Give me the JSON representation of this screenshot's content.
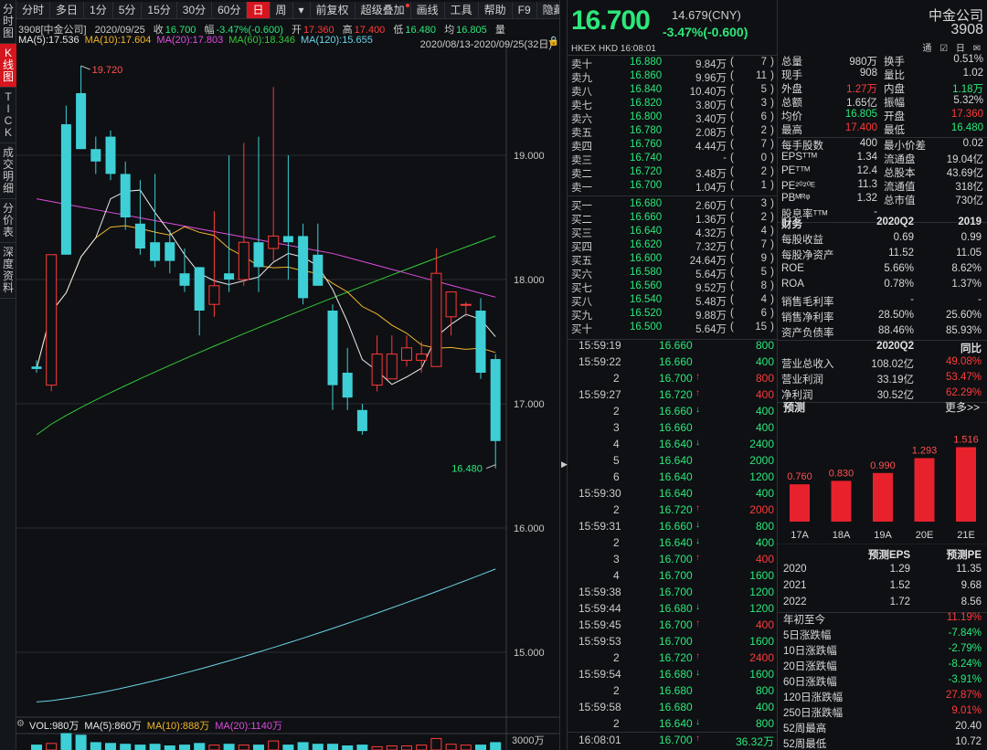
{
  "sidebar": {
    "items": [
      {
        "label": "分\n时\n图",
        "active": false
      },
      {
        "label": "K\n线\n图",
        "active": true
      },
      {
        "label": "T\nI\nC\nK",
        "active": false
      },
      {
        "label": "成\n交\n明\n细",
        "active": false
      },
      {
        "label": "分\n价\n表",
        "active": false
      },
      {
        "label": "深\n度\n资\n料",
        "active": false
      }
    ]
  },
  "toolbar": {
    "buttons": [
      "分时",
      "多日",
      "1分",
      "5分",
      "15分",
      "30分",
      "60分",
      "日",
      "周",
      "▾",
      "前复权",
      "超级叠加",
      "画线",
      "工具",
      "帮助",
      "F9",
      "隐藏"
    ],
    "active_index": 7,
    "dot_index": 11
  },
  "chart": {
    "info": {
      "code_name": "3908[中金公司]",
      "date": "2020/09/25",
      "close_label": "收",
      "close": "16.700",
      "range_label": "幅",
      "range": "-3.47%(-0.600)",
      "open_label": "开",
      "open": "17.360",
      "high_label": "高",
      "high": "17.400",
      "low_label": "低",
      "low": "16.480",
      "avg_label": "均",
      "avg": "16.805",
      "vol_label": "量"
    },
    "ma_legend": [
      {
        "text": "MA(5):17.536",
        "color": "#e8e8e8"
      },
      {
        "text": "MA(10):17.604",
        "color": "#f2b72b"
      },
      {
        "text": "MA(20):17.803",
        "color": "#e04ce0"
      },
      {
        "text": "MA(60):18.346",
        "color": "#35c93b"
      },
      {
        "text": "MA(120):15.655",
        "color": "#6bd3e8"
      }
    ],
    "date_range": "2020/08/13-2020/09/25(32日)",
    "price_labels": [
      "19.000",
      "18.000",
      "17.000",
      "16.000",
      "15.000"
    ],
    "high_mark": "19.720",
    "low_mark": "16.480",
    "vol_legend": [
      {
        "text": "VOL:980万",
        "color": "#e8e8e8"
      },
      {
        "text": "MA(5):860万",
        "color": "#e8e8e8"
      },
      {
        "text": "MA(10):888万",
        "color": "#f2b72b"
      },
      {
        "text": "MA(20):1140万",
        "color": "#e04ce0"
      }
    ],
    "vol_label": "3000万"
  },
  "quote": {
    "price": "16.700",
    "prev_close": "14.679(CNY)",
    "change": "-3.47%(-0.600)",
    "market": "HKEX  HKD  16:08:01",
    "asks": [
      {
        "label": "卖十",
        "price": "16.880",
        "vol": "9.84万",
        "cnt": "7"
      },
      {
        "label": "卖九",
        "price": "16.860",
        "vol": "9.96万",
        "cnt": "11"
      },
      {
        "label": "卖八",
        "price": "16.840",
        "vol": "10.40万",
        "cnt": "5"
      },
      {
        "label": "卖七",
        "price": "16.820",
        "vol": "3.80万",
        "cnt": "3"
      },
      {
        "label": "卖六",
        "price": "16.800",
        "vol": "3.40万",
        "cnt": "6"
      },
      {
        "label": "卖五",
        "price": "16.780",
        "vol": "2.08万",
        "cnt": "2"
      },
      {
        "label": "卖四",
        "price": "16.760",
        "vol": "4.44万",
        "cnt": "7"
      },
      {
        "label": "卖三",
        "price": "16.740",
        "vol": "-",
        "cnt": "0"
      },
      {
        "label": "卖二",
        "price": "16.720",
        "vol": "3.48万",
        "cnt": "2"
      },
      {
        "label": "卖一",
        "price": "16.700",
        "vol": "1.04万",
        "cnt": "1"
      }
    ],
    "bids": [
      {
        "label": "买一",
        "price": "16.680",
        "vol": "2.60万",
        "cnt": "3"
      },
      {
        "label": "买二",
        "price": "16.660",
        "vol": "1.36万",
        "cnt": "2"
      },
      {
        "label": "买三",
        "price": "16.640",
        "vol": "4.32万",
        "cnt": "4"
      },
      {
        "label": "买四",
        "price": "16.620",
        "vol": "7.32万",
        "cnt": "7"
      },
      {
        "label": "买五",
        "price": "16.600",
        "vol": "24.64万",
        "cnt": "9"
      },
      {
        "label": "买六",
        "price": "16.580",
        "vol": "5.64万",
        "cnt": "5"
      },
      {
        "label": "买七",
        "price": "16.560",
        "vol": "9.52万",
        "cnt": "8"
      },
      {
        "label": "买八",
        "price": "16.540",
        "vol": "5.48万",
        "cnt": "4"
      },
      {
        "label": "买九",
        "price": "16.520",
        "vol": "9.88万",
        "cnt": "6"
      },
      {
        "label": "买十",
        "price": "16.500",
        "vol": "5.64万",
        "cnt": "15"
      }
    ],
    "ticks": [
      {
        "time": "15:59:19",
        "price": "16.660",
        "dir": "",
        "vol": "800",
        "vcolor": "green"
      },
      {
        "time": "15:59:22",
        "price": "16.660",
        "dir": "",
        "vol": "400",
        "vcolor": "green"
      },
      {
        "time": "2",
        "price": "16.700",
        "dir": "up",
        "vol": "800",
        "vcolor": "red"
      },
      {
        "time": "15:59:27",
        "price": "16.720",
        "dir": "up",
        "vol": "400",
        "vcolor": "red"
      },
      {
        "time": "2",
        "price": "16.660",
        "dir": "down",
        "vol": "400",
        "vcolor": "green"
      },
      {
        "time": "3",
        "price": "16.660",
        "dir": "",
        "vol": "400",
        "vcolor": "green"
      },
      {
        "time": "4",
        "price": "16.640",
        "dir": "down",
        "vol": "2400",
        "vcolor": "green"
      },
      {
        "time": "5",
        "price": "16.640",
        "dir": "",
        "vol": "2000",
        "vcolor": "green"
      },
      {
        "time": "6",
        "price": "16.640",
        "dir": "",
        "vol": "1200",
        "vcolor": "green"
      },
      {
        "time": "15:59:30",
        "price": "16.640",
        "dir": "",
        "vol": "400",
        "vcolor": "green"
      },
      {
        "time": "2",
        "price": "16.720",
        "dir": "up",
        "vol": "2000",
        "vcolor": "red"
      },
      {
        "time": "15:59:31",
        "price": "16.660",
        "dir": "down",
        "vol": "800",
        "vcolor": "green"
      },
      {
        "time": "2",
        "price": "16.640",
        "dir": "down",
        "vol": "400",
        "vcolor": "green"
      },
      {
        "time": "3",
        "price": "16.700",
        "dir": "up",
        "vol": "400",
        "vcolor": "red"
      },
      {
        "time": "4",
        "price": "16.700",
        "dir": "",
        "vol": "1600",
        "vcolor": "green"
      },
      {
        "time": "15:59:38",
        "price": "16.700",
        "dir": "",
        "vol": "1200",
        "vcolor": "green"
      },
      {
        "time": "15:59:44",
        "price": "16.680",
        "dir": "down",
        "vol": "1200",
        "vcolor": "green"
      },
      {
        "time": "15:59:45",
        "price": "16.700",
        "dir": "up",
        "vol": "400",
        "vcolor": "red"
      },
      {
        "time": "15:59:53",
        "price": "16.700",
        "dir": "",
        "vol": "1600",
        "vcolor": "green"
      },
      {
        "time": "2",
        "price": "16.720",
        "dir": "up",
        "vol": "2400",
        "vcolor": "red"
      },
      {
        "time": "15:59:54",
        "price": "16.680",
        "dir": "down",
        "vol": "1600",
        "vcolor": "green"
      },
      {
        "time": "2",
        "price": "16.680",
        "dir": "",
        "vol": "800",
        "vcolor": "green"
      },
      {
        "time": "15:59:58",
        "price": "16.680",
        "dir": "",
        "vol": "400",
        "vcolor": "green"
      },
      {
        "time": "2",
        "price": "16.640",
        "dir": "down",
        "vol": "800",
        "vcolor": "green"
      },
      {
        "time": "16:08:01",
        "price": "16.700",
        "dir": "up",
        "vol": "36.32万",
        "vcolor": "green"
      }
    ]
  },
  "company": {
    "name": "中金公司",
    "code": "3908",
    "icons": "通 ☑ 日 ✉"
  },
  "stats": [
    {
      "k1": "总量",
      "v1": "980万",
      "c1": "#d8d8d8",
      "k2": "换手",
      "v2": "0.51%",
      "c2": "#d8d8d8"
    },
    {
      "k1": "现手",
      "v1": "908",
      "c1": "#d8d8d8",
      "k2": "量比",
      "v2": "1.02",
      "c2": "#d8d8d8"
    },
    {
      "k1": "外盘",
      "v1": "1.27万",
      "c1": "#ff3a3a",
      "k2": "内盘",
      "v2": "1.18万",
      "c2": "#2be87a"
    },
    {
      "k1": "总额",
      "v1": "1.65亿",
      "c1": "#d8d8d8",
      "k2": "振幅",
      "v2": "5.32%",
      "c2": "#d8d8d8"
    },
    {
      "k1": "均价",
      "v1": "16.805",
      "c1": "#2be87a",
      "k2": "开盘",
      "v2": "17.360",
      "c2": "#ff3a3a"
    },
    {
      "k1": "最高",
      "v1": "17.400",
      "c1": "#ff3a3a",
      "k2": "最低",
      "v2": "16.480",
      "c2": "#2be87a"
    },
    {
      "k1": "每手股数",
      "v1": "400",
      "c1": "#d8d8d8",
      "k2": "最小价差",
      "v2": "0.02",
      "c2": "#d8d8d8"
    },
    {
      "k1": "EPSᵀᵀᴹ",
      "v1": "1.34",
      "c1": "#d8d8d8",
      "k2": "流通盘",
      "v2": "19.04亿",
      "c2": "#d8d8d8"
    },
    {
      "k1": "PEᵀᵀᴹ",
      "v1": "12.4",
      "c1": "#d8d8d8",
      "k2": "总股本",
      "v2": "43.69亿",
      "c2": "#d8d8d8"
    },
    {
      "k1": "PE²⁰²⁰ᴱ",
      "v1": "11.3",
      "c1": "#d8d8d8",
      "k2": "流通值",
      "v2": "318亿",
      "c2": "#d8d8d8"
    },
    {
      "k1": "PBᴹᴿᵠ",
      "v1": "1.32",
      "c1": "#d8d8d8",
      "k2": "总市值",
      "v2": "730亿",
      "c2": "#d8d8d8"
    },
    {
      "k1": "股息率ᵀᵀᴹ",
      "v1": "-",
      "c1": "#d8d8d8",
      "k2": "",
      "v2": "",
      "c2": "#d8d8d8"
    }
  ],
  "finance": {
    "header": {
      "k": "财务",
      "a": "2020Q2",
      "b": "2019"
    },
    "rows": [
      {
        "k": "每股收益",
        "a": "0.69",
        "b": "0.99",
        "ca": "#d8d8d8",
        "cb": "#d8d8d8"
      },
      {
        "k": "每股净资产",
        "a": "11.52",
        "b": "11.05",
        "ca": "#d8d8d8",
        "cb": "#d8d8d8"
      },
      {
        "k": "ROE",
        "a": "5.66%",
        "b": "8.62%",
        "ca": "#d8d8d8",
        "cb": "#d8d8d8"
      },
      {
        "k": "ROA",
        "a": "0.78%",
        "b": "1.37%",
        "ca": "#d8d8d8",
        "cb": "#d8d8d8"
      },
      {
        "k": "销售毛利率",
        "a": "-",
        "b": "-",
        "ca": "#d8d8d8",
        "cb": "#d8d8d8"
      },
      {
        "k": "销售净利率",
        "a": "28.50%",
        "b": "25.60%",
        "ca": "#d8d8d8",
        "cb": "#d8d8d8"
      },
      {
        "k": "资产负债率",
        "a": "88.46%",
        "b": "85.93%",
        "ca": "#d8d8d8",
        "cb": "#d8d8d8"
      }
    ],
    "header2": {
      "k": "",
      "a": "2020Q2",
      "b": "同比"
    },
    "rows2": [
      {
        "k": "营业总收入",
        "a": "108.02亿",
        "b": "49.08%",
        "ca": "#d8d8d8",
        "cb": "#ff3a3a"
      },
      {
        "k": "营业利润",
        "a": "33.19亿",
        "b": "53.47%",
        "ca": "#d8d8d8",
        "cb": "#ff3a3a"
      },
      {
        "k": "净利润",
        "a": "30.52亿",
        "b": "62.29%",
        "ca": "#d8d8d8",
        "cb": "#ff3a3a"
      }
    ]
  },
  "forecast": {
    "title": "预测",
    "more": "更多>>"
  },
  "chart_data": {
    "type": "bar",
    "categories": [
      "17A",
      "18A",
      "19A",
      "20E",
      "21E"
    ],
    "values": [
      0.76,
      0.83,
      0.99,
      1.293,
      1.516
    ],
    "title": "",
    "ylim": [
      0,
      1.6
    ]
  },
  "eps_table": {
    "headers": [
      "",
      "预测EPS",
      "预测PE"
    ],
    "rows": [
      [
        "2020",
        "1.29",
        "11.35"
      ],
      [
        "2021",
        "1.52",
        "9.68"
      ],
      [
        "2022",
        "1.72",
        "8.56"
      ]
    ]
  },
  "returns": [
    {
      "k": "年初至今",
      "v": "11.19%",
      "c": "#ff3a3a"
    },
    {
      "k": "5日涨跌幅",
      "v": "-7.84%",
      "c": "#2be87a"
    },
    {
      "k": "10日涨跌幅",
      "v": "-2.79%",
      "c": "#2be87a"
    },
    {
      "k": "20日涨跌幅",
      "v": "-8.24%",
      "c": "#2be87a"
    },
    {
      "k": "60日涨跌幅",
      "v": "-3.91%",
      "c": "#2be87a"
    },
    {
      "k": "120日涨跌幅",
      "v": "27.87%",
      "c": "#ff3a3a"
    },
    {
      "k": "250日涨跌幅",
      "v": "9.01%",
      "c": "#ff3a3a"
    },
    {
      "k": "52周最高",
      "v": "20.40",
      "c": "#d8d8d8"
    },
    {
      "k": "52周最低",
      "v": "10.72",
      "c": "#d8d8d8"
    }
  ],
  "kline": {
    "candles": [
      [
        17.3,
        17.28,
        17.35,
        17.25
      ],
      [
        17.15,
        18.2,
        18.2,
        17.1
      ],
      [
        19.25,
        18.2,
        19.4,
        18.2
      ],
      [
        19.5,
        19.05,
        19.72,
        19.05
      ],
      [
        19.05,
        18.95,
        19.15,
        18.85
      ],
      [
        19.15,
        18.85,
        19.2,
        18.8
      ],
      [
        18.85,
        18.5,
        18.95,
        18.4
      ],
      [
        18.45,
        18.25,
        18.8,
        18.2
      ],
      [
        18.3,
        18.15,
        18.85,
        18.1
      ],
      [
        18.3,
        18.15,
        18.4,
        18.05
      ],
      [
        18.05,
        17.95,
        18.25,
        17.9
      ],
      [
        18.1,
        17.75,
        18.1,
        17.55
      ],
      [
        17.8,
        17.95,
        18.55,
        17.7
      ],
      [
        18.05,
        18.0,
        19.0,
        17.9
      ],
      [
        18.0,
        18.3,
        19.1,
        17.95
      ],
      [
        18.3,
        18.1,
        19.15,
        17.9
      ],
      [
        18.25,
        18.35,
        19.55,
        18.15
      ],
      [
        18.35,
        18.3,
        19.0,
        18.0
      ],
      [
        18.35,
        17.85,
        18.45,
        17.8
      ],
      [
        18.2,
        17.95,
        18.45,
        17.95
      ],
      [
        17.75,
        17.15,
        17.8,
        16.95
      ],
      [
        17.25,
        17.05,
        17.45,
        16.95
      ],
      [
        16.95,
        16.78,
        17.0,
        16.75
      ],
      [
        17.15,
        17.4,
        17.55,
        17.1
      ],
      [
        17.2,
        17.4,
        17.55,
        17.2
      ],
      [
        17.35,
        17.45,
        17.55,
        17.3
      ],
      [
        17.35,
        17.4,
        17.5,
        17.25
      ],
      [
        17.3,
        18.05,
        18.25,
        17.3
      ],
      [
        17.7,
        17.9,
        17.9,
        17.55
      ],
      [
        17.8,
        17.8,
        17.82,
        17.7
      ],
      [
        17.75,
        17.25,
        17.85,
        17.2
      ],
      [
        17.36,
        16.7,
        17.4,
        16.48
      ]
    ],
    "volumes": [
      6,
      8,
      22,
      18,
      9,
      8,
      7,
      6,
      7,
      5,
      6,
      8,
      6,
      7,
      6,
      6,
      11,
      6,
      9,
      7,
      7,
      5,
      6,
      4,
      5,
      5,
      6,
      14,
      7,
      6,
      6,
      9
    ]
  }
}
